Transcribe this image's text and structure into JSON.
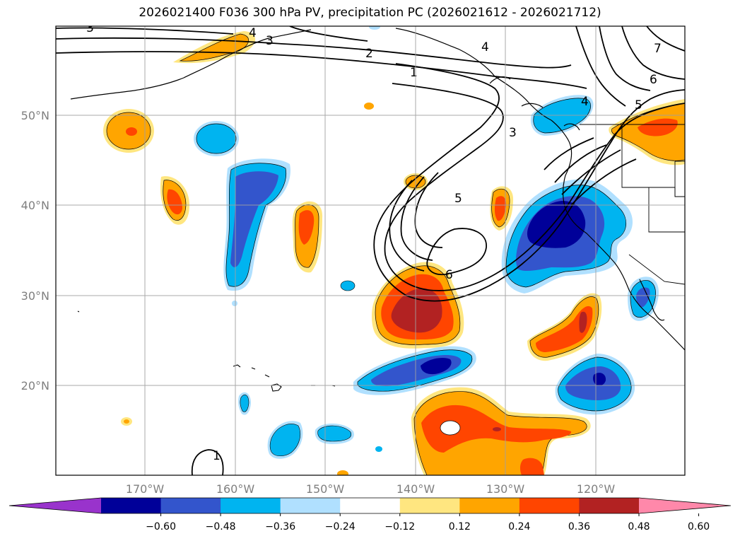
{
  "title": "2026021400 F036 300 hPa PV, precipitation PC (2026021612 - 2026021712)",
  "lat_labels": [
    "50°N",
    "40°N",
    "30°N",
    "20°N"
  ],
  "lon_labels": [
    "170°W",
    "160°W",
    "150°W",
    "140°W",
    "130°W",
    "120°W"
  ],
  "pv_contour_labels": [
    "1",
    "2",
    "3",
    "3",
    "3",
    "4",
    "4",
    "4",
    "5",
    "5",
    "6",
    "6",
    "7",
    "1"
  ],
  "colorbar": {
    "colors": [
      "#9933cc",
      "#000099",
      "#3355cc",
      "#00b4f0",
      "#b0e0ff",
      "#ffffff",
      "#ffe680",
      "#ffa500",
      "#ff4500",
      "#b22222",
      "#ff88aa"
    ],
    "tick_labels": [
      "−0.60",
      "−0.48",
      "−0.36",
      "−0.24",
      "−0.12",
      "0.12",
      "0.24",
      "0.36",
      "0.48",
      "0.60"
    ]
  }
}
